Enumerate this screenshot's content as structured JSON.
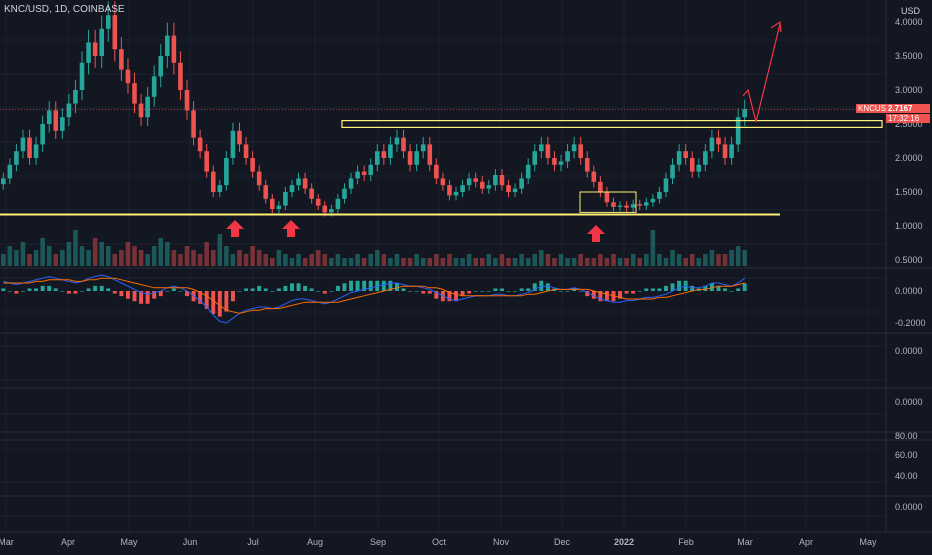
{
  "header": {
    "symbol_title": "KNC/USD, 1D, COINBASE",
    "currency": "USD"
  },
  "badges": {
    "symbol": "KNCUSD",
    "price": "2.7167",
    "countdown": "17:32:16"
  },
  "colors": {
    "background": "#131722",
    "up": "#26a69a",
    "down": "#ef5350",
    "support": "#fff176",
    "arrow": "#f23645",
    "macd": "#2962ff",
    "signal": "#ff6d00"
  },
  "chart_data": [
    {
      "type": "candlestick",
      "title": "",
      "x_ticks": [
        "Mar",
        "Apr",
        "May",
        "Jun",
        "Jul",
        "Aug",
        "Sep",
        "Oct",
        "Nov",
        "Dec",
        "2022",
        "Feb",
        "Mar",
        "Apr",
        "May"
      ],
      "y_ticks": [
        "4.0000",
        "3.5000",
        "3.0000",
        "2.5000",
        "2.0000",
        "1.5000",
        "1.0000",
        "0.5000"
      ],
      "ylim": [
        0.45,
        4.3
      ],
      "last_price": 2.7167,
      "series": [
        {
          "values": [
            1.7,
            1.9,
            2.1,
            2.3,
            2.0,
            2.2,
            2.5,
            2.7,
            2.4,
            2.6,
            2.8,
            3.0,
            3.4,
            3.7,
            3.5,
            3.9,
            4.1,
            3.6,
            3.3,
            3.1,
            2.8,
            2.6,
            2.9,
            3.2,
            3.5,
            3.8,
            3.4,
            3.0,
            2.7,
            2.3,
            2.1,
            1.8,
            1.5,
            1.6,
            2.0,
            2.4,
            2.2,
            2.0,
            1.8,
            1.6,
            1.4,
            1.25,
            1.3,
            1.5,
            1.6,
            1.7,
            1.55,
            1.4,
            1.3,
            1.2,
            1.25,
            1.4,
            1.55,
            1.7,
            1.8,
            1.75,
            1.9,
            2.1,
            2.0,
            2.2,
            2.3,
            2.1,
            1.9,
            2.1,
            2.2,
            1.9,
            1.7,
            1.6,
            1.45,
            1.5,
            1.6,
            1.7,
            1.65,
            1.55,
            1.6,
            1.75,
            1.6,
            1.5,
            1.55,
            1.7,
            1.9,
            2.1,
            2.2,
            2.0,
            1.9,
            1.95,
            2.1,
            2.2,
            2.0,
            1.8,
            1.65,
            1.5,
            1.35,
            1.28,
            1.3,
            1.27,
            1.32,
            1.3,
            1.35,
            1.4,
            1.5,
            1.7,
            1.9,
            2.1,
            2.0,
            1.8,
            1.9,
            2.1,
            2.3,
            2.2,
            2.0,
            2.2,
            2.6,
            2.72
          ]
        }
      ],
      "support_level": 1.17,
      "resistance_zone": [
        2.45,
        2.55
      ],
      "consolidation_zone": [
        1.2,
        1.5
      ]
    },
    {
      "type": "bar",
      "title": "",
      "series": [
        {
          "values": [
            3,
            5,
            4,
            6,
            3,
            4,
            7,
            5,
            3,
            4,
            6,
            9,
            5,
            4,
            7,
            6,
            5,
            3,
            4,
            6,
            5,
            4,
            3,
            5,
            7,
            6,
            4,
            3,
            5,
            4,
            3,
            6,
            4,
            8,
            5,
            3,
            4,
            3,
            5,
            4,
            3,
            2,
            4,
            3,
            2,
            3,
            2,
            3,
            4,
            3,
            2,
            3,
            2,
            2,
            3,
            2,
            3,
            4,
            3,
            2,
            3,
            2,
            2,
            3,
            2,
            2,
            3,
            2,
            3,
            2,
            2,
            3,
            2,
            2,
            3,
            2,
            3,
            2,
            2,
            3,
            2,
            3,
            4,
            3,
            2,
            3,
            2,
            2,
            3,
            2,
            2,
            3,
            2,
            3,
            2,
            2,
            3,
            2,
            3,
            9,
            3,
            2,
            4,
            3,
            2,
            3,
            2,
            3,
            4,
            3,
            3,
            4,
            5,
            4
          ]
        }
      ]
    },
    {
      "type": "line",
      "title": "",
      "y_ticks": [
        "0.0000",
        "-0.2000"
      ],
      "ylim": [
        -0.22,
        0.12
      ],
      "series": [
        {
          "values": [
            0.06,
            0.05,
            0.04,
            0.05,
            0.06,
            0.07,
            0.08,
            0.09,
            0.08,
            0.07,
            0.06,
            0.05,
            0.06,
            0.08,
            0.09,
            0.1,
            0.09,
            0.07,
            0.05,
            0.03,
            0.01,
            -0.01,
            -0.02,
            -0.01,
            0.0,
            0.02,
            0.03,
            0.02,
            0.0,
            -0.03,
            -0.06,
            -0.1,
            -0.15,
            -0.19,
            -0.2,
            -0.17,
            -0.14,
            -0.12,
            -0.11,
            -0.1,
            -0.1,
            -0.11,
            -0.1,
            -0.08,
            -0.06,
            -0.05,
            -0.05,
            -0.06,
            -0.07,
            -0.08,
            -0.07,
            -0.05,
            -0.03,
            -0.01,
            0.0,
            0.01,
            0.02,
            0.03,
            0.04,
            0.05,
            0.05,
            0.04,
            0.03,
            0.03,
            0.02,
            0.01,
            -0.01,
            -0.03,
            -0.05,
            -0.06,
            -0.05,
            -0.04,
            -0.03,
            -0.03,
            -0.03,
            -0.02,
            -0.02,
            -0.03,
            -0.03,
            -0.02,
            -0.01,
            0.01,
            0.03,
            0.03,
            0.02,
            0.01,
            0.01,
            0.02,
            0.01,
            -0.01,
            -0.03,
            -0.05,
            -0.06,
            -0.07,
            -0.07,
            -0.06,
            -0.06,
            -0.05,
            -0.04,
            -0.04,
            -0.03,
            -0.02,
            0.0,
            0.02,
            0.03,
            0.02,
            0.02,
            0.03,
            0.05,
            0.05,
            0.04,
            0.03,
            0.05,
            0.08
          ]
        },
        {
          "values": [
            0.05,
            0.05,
            0.05,
            0.05,
            0.05,
            0.06,
            0.06,
            0.07,
            0.07,
            0.07,
            0.07,
            0.06,
            0.06,
            0.07,
            0.07,
            0.08,
            0.08,
            0.08,
            0.07,
            0.06,
            0.05,
            0.04,
            0.03,
            0.02,
            0.02,
            0.02,
            0.02,
            0.02,
            0.02,
            0.01,
            -0.01,
            -0.03,
            -0.06,
            -0.09,
            -0.12,
            -0.13,
            -0.14,
            -0.13,
            -0.12,
            -0.12,
            -0.11,
            -0.11,
            -0.11,
            -0.1,
            -0.09,
            -0.08,
            -0.07,
            -0.07,
            -0.07,
            -0.07,
            -0.07,
            -0.07,
            -0.06,
            -0.05,
            -0.04,
            -0.03,
            -0.02,
            -0.01,
            0.0,
            0.01,
            0.02,
            0.03,
            0.03,
            0.03,
            0.03,
            0.02,
            0.02,
            0.01,
            -0.01,
            -0.02,
            -0.03,
            -0.03,
            -0.03,
            -0.03,
            -0.03,
            -0.03,
            -0.03,
            -0.03,
            -0.03,
            -0.03,
            -0.02,
            -0.02,
            -0.01,
            0.0,
            0.01,
            0.01,
            0.01,
            0.01,
            0.01,
            0.01,
            0.0,
            -0.01,
            -0.02,
            -0.03,
            -0.04,
            -0.05,
            -0.05,
            -0.05,
            -0.05,
            -0.05,
            -0.04,
            -0.04,
            -0.03,
            -0.02,
            -0.01,
            0.0,
            0.01,
            0.01,
            0.02,
            0.03,
            0.03,
            0.03,
            0.04,
            0.05
          ]
        }
      ]
    },
    {
      "type": "line",
      "title": "",
      "y_ticks": [
        "0.0000"
      ],
      "series": []
    },
    {
      "type": "line",
      "title": "",
      "y_ticks": [
        "0.0000"
      ],
      "series": []
    },
    {
      "type": "line",
      "title": "",
      "y_ticks": [
        "80.00",
        "60.00",
        "40.00"
      ],
      "series": []
    },
    {
      "type": "line",
      "title": "",
      "y_ticks": [
        "0.0000"
      ],
      "series": []
    }
  ]
}
